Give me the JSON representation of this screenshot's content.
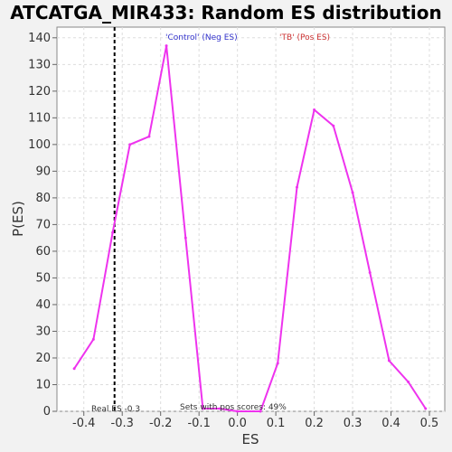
{
  "colors": {
    "curve": "#ee33ee",
    "neg_label": "#3333cc",
    "pos_label": "#cc3333",
    "real_es_line": "#000000"
  },
  "chart_data": {
    "type": "line",
    "title": "ATCATGA_MIR433: Random ES distribution",
    "xlabel": "ES",
    "ylabel": "P(ES)",
    "xlim": [
      -0.47,
      0.54
    ],
    "ylim": [
      0,
      144
    ],
    "x_ticks": [
      -0.4,
      -0.3,
      -0.2,
      -0.1,
      0.0,
      0.1,
      0.2,
      0.3,
      0.4,
      0.5
    ],
    "x_tick_labels": [
      "-0.4",
      "-0.3",
      "-0.2",
      "-0.1",
      "0.0",
      "0.1",
      "0.2",
      "0.3",
      "0.4",
      "0.5"
    ],
    "y_ticks": [
      0,
      10,
      20,
      30,
      40,
      50,
      60,
      70,
      80,
      90,
      100,
      110,
      120,
      130,
      140
    ],
    "grid": true,
    "series": [
      {
        "x": [
          -0.425,
          -0.375,
          -0.325,
          -0.28,
          -0.23,
          -0.185,
          -0.135,
          -0.09,
          -0.045,
          0.0,
          0.06,
          0.105,
          0.155,
          0.2,
          0.25,
          0.3,
          0.345,
          0.395,
          0.445,
          0.49
        ],
        "y": [
          16,
          27,
          67,
          100,
          103,
          137,
          65,
          1,
          1,
          0,
          0,
          18,
          84,
          113,
          107,
          82,
          52,
          19,
          11,
          1
        ]
      }
    ],
    "real_es": {
      "x": -0.32,
      "label": "Real ES -0.3"
    },
    "annotations": {
      "neg_label": "'Control' (Neg ES)",
      "pos_label": "'TB' (Pos ES)",
      "pos_scores": "Sets with pos scores: 49%"
    }
  }
}
